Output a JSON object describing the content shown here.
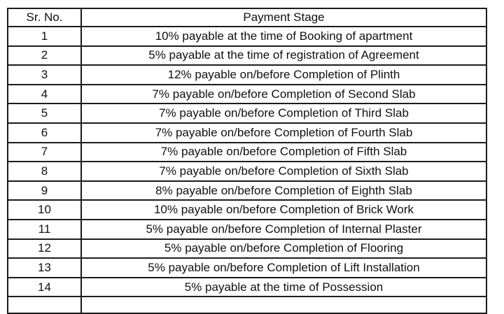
{
  "table": {
    "headers": {
      "sr_no": "Sr. No.",
      "payment_stage": "Payment Stage"
    },
    "rows": [
      {
        "no": "1",
        "stage": "10% payable at the time of Booking of apartment"
      },
      {
        "no": "2",
        "stage": "5% payable at the time of registration of Agreement"
      },
      {
        "no": "3",
        "stage": "12% payable on/before Completion of Plinth"
      },
      {
        "no": "4",
        "stage": "7% payable on/before Completion of Second Slab"
      },
      {
        "no": "5",
        "stage": "7% payable on/before Completion of Third Slab"
      },
      {
        "no": "6",
        "stage": "7% payable on/before Completion of Fourth Slab"
      },
      {
        "no": "7",
        "stage": "7% payable on/before Completion of Fifth Slab"
      },
      {
        "no": "8",
        "stage": "7% payable on/before Completion of Sixth Slab"
      },
      {
        "no": "9",
        "stage": "8% payable on/before Completion of Eighth Slab"
      },
      {
        "no": "10",
        "stage": "10% payable on/before Completion of Brick Work"
      },
      {
        "no": "11",
        "stage": "5% payable on/before Completion of Internal Plaster"
      },
      {
        "no": "12",
        "stage": "5% payable on/before Completion of Flooring"
      },
      {
        "no": "13",
        "stage": "5% payable on/before Completion of Lift Installation"
      },
      {
        "no": "14",
        "stage": "5% payable at the time of Possession"
      }
    ],
    "colors": {
      "border": "#1c1c1c",
      "text": "#111111",
      "background": "#ffffff"
    }
  },
  "chart_data": {
    "type": "table",
    "title": "Payment Stage",
    "columns": [
      "Sr. No.",
      "Payment Stage"
    ],
    "values": [
      10,
      5,
      12,
      7,
      7,
      7,
      7,
      7,
      8,
      10,
      5,
      5,
      5,
      5
    ],
    "unit": "%"
  }
}
